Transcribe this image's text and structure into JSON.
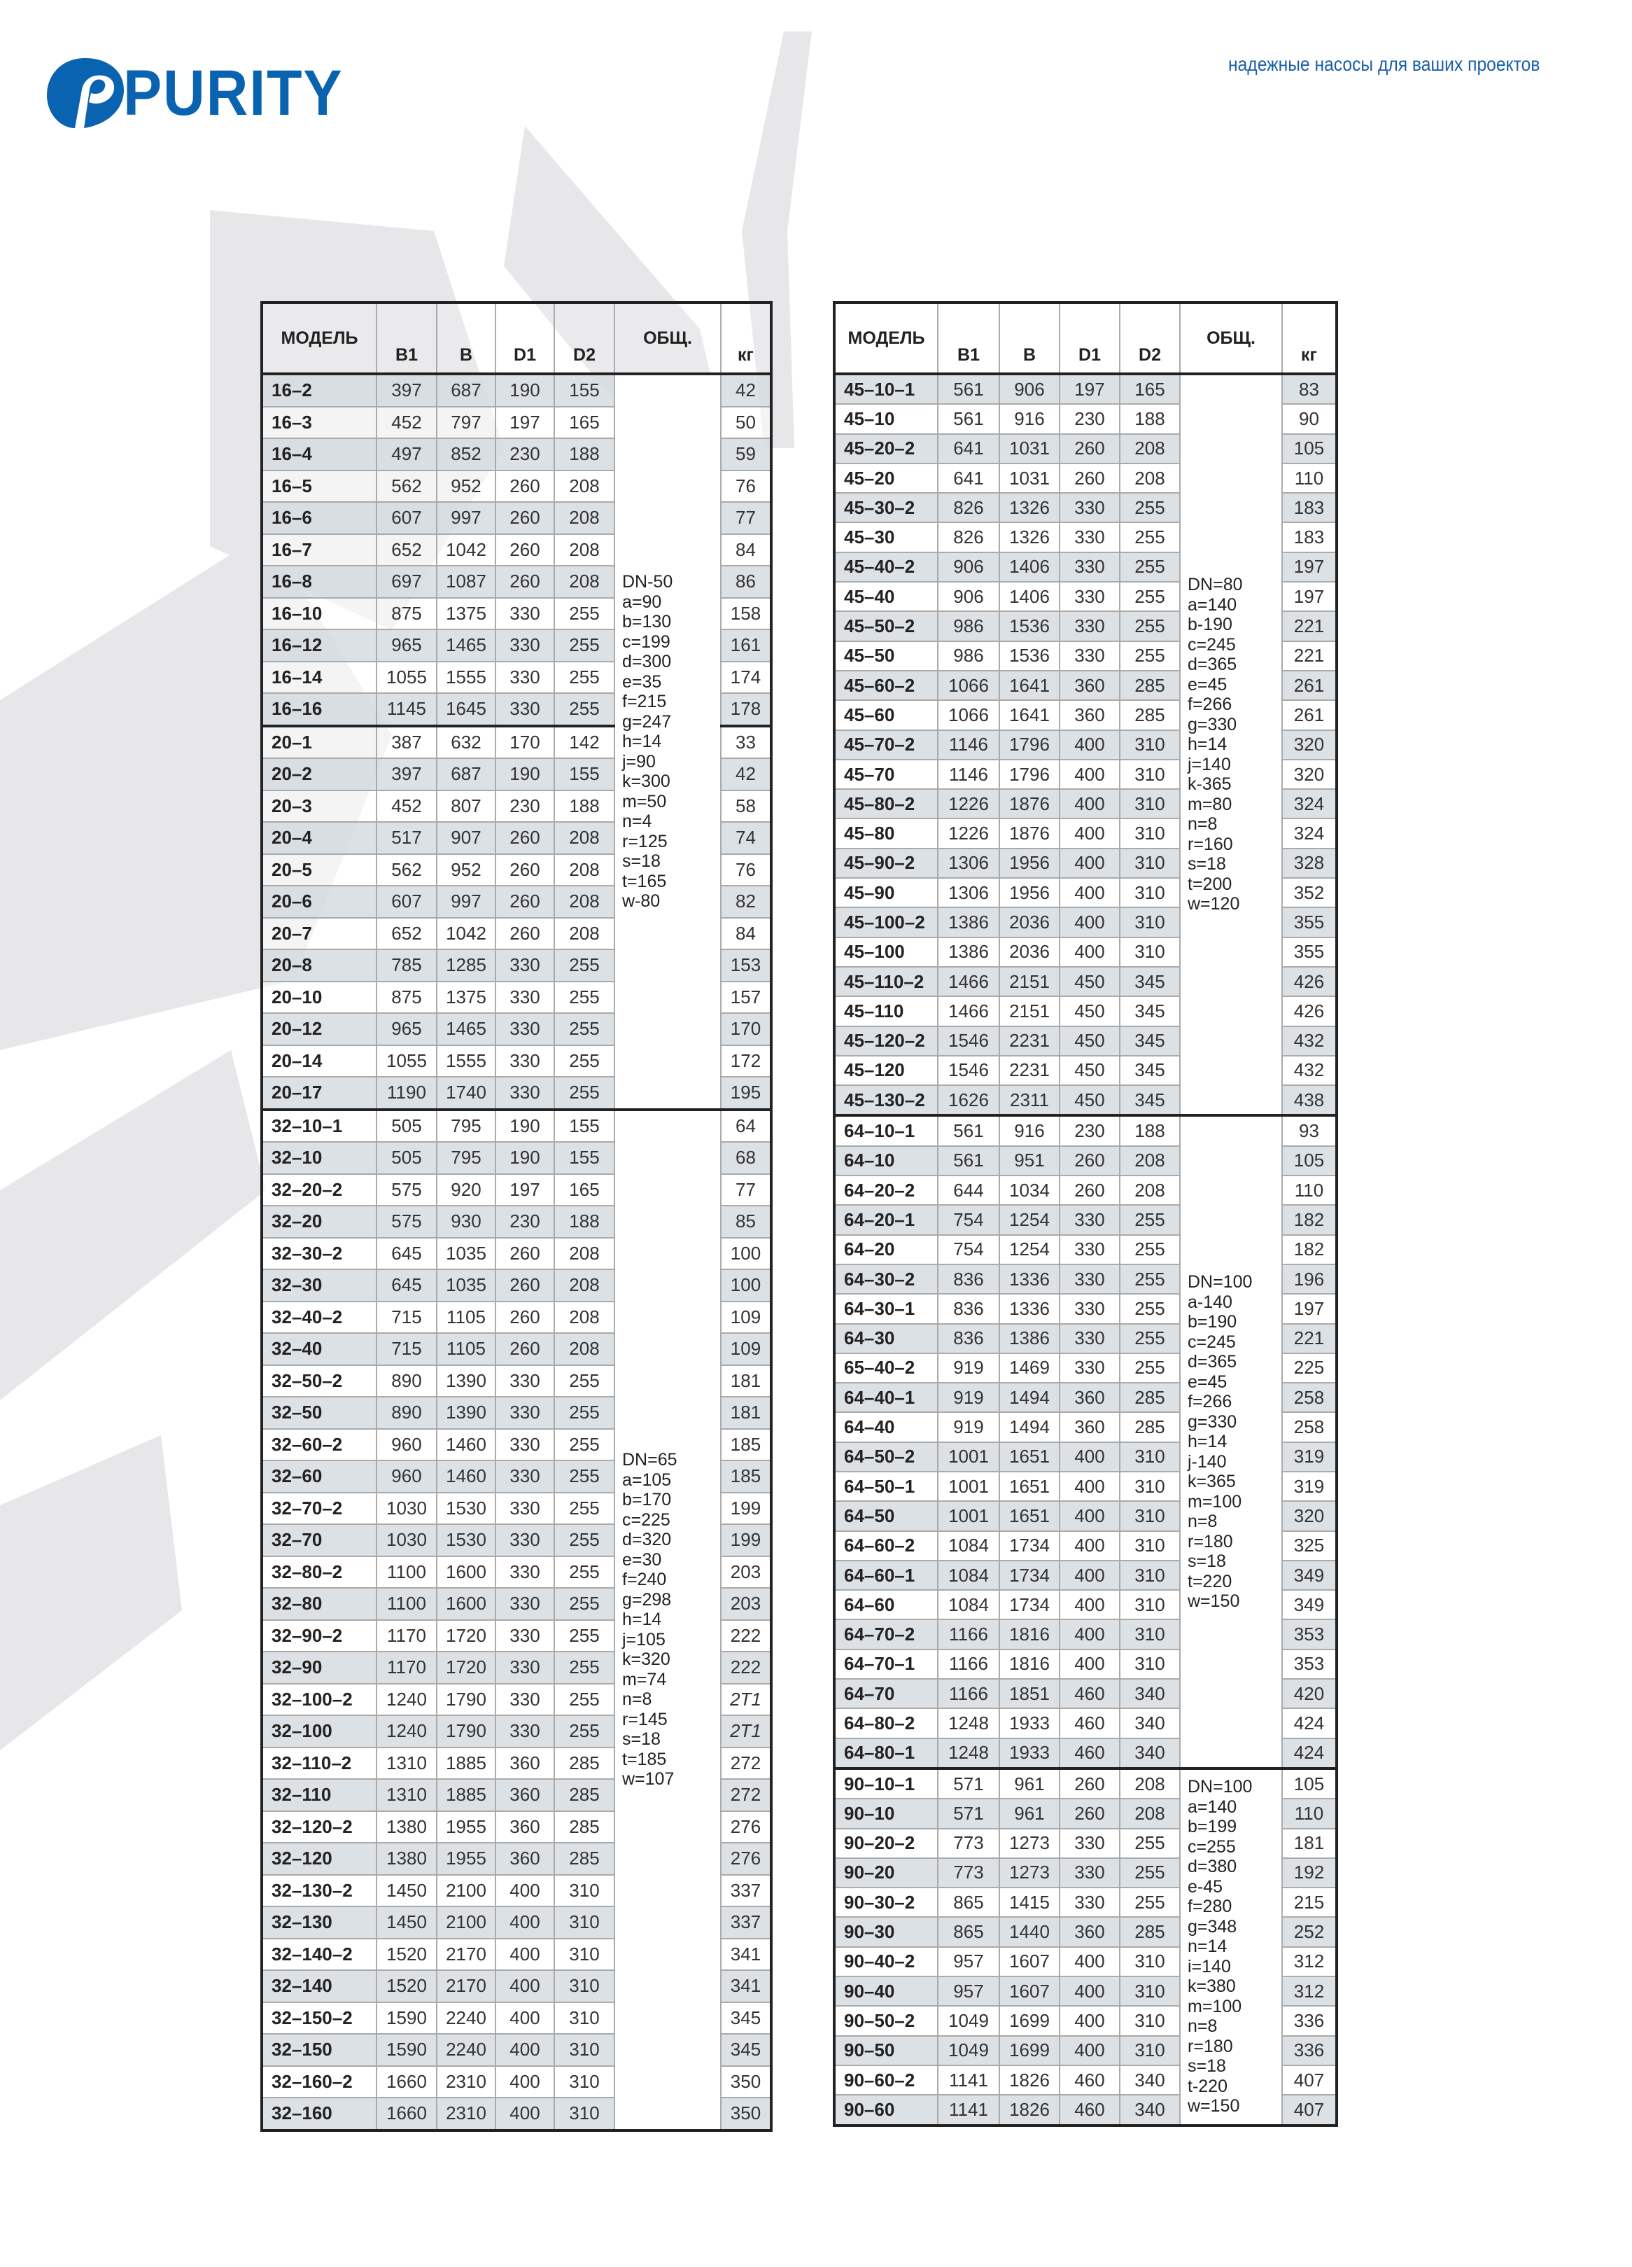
{
  "brand": {
    "logo_text": "PURITY",
    "tagline": "надежные насосы для ваших проектов",
    "color": "#0a63b0",
    "watermark": "PURITY"
  },
  "columns": {
    "model": "МОДЕЛЬ",
    "b1": "B1",
    "b": "B",
    "d1": "D1",
    "d2": "D2",
    "general": "ОБЩ.",
    "kg": "кг"
  },
  "left_table": {
    "groups": [
      {
        "notes": [
          "DN-50",
          "a=90",
          "b=130",
          "c=199",
          "d=300",
          "e=35",
          "f=215",
          "g=247",
          "h=14",
          "j=90",
          "k=300",
          "m=50",
          "n=4",
          "r=125",
          "s=18",
          "t=165",
          "w-80"
        ],
        "rows": [
          [
            "16–2",
            "397",
            "687",
            "190",
            "155",
            "42"
          ],
          [
            "16–3",
            "452",
            "797",
            "197",
            "165",
            "50"
          ],
          [
            "16–4",
            "497",
            "852",
            "230",
            "188",
            "59"
          ],
          [
            "16–5",
            "562",
            "952",
            "260",
            "208",
            "76"
          ],
          [
            "16–6",
            "607",
            "997",
            "260",
            "208",
            "77"
          ],
          [
            "16–7",
            "652",
            "1042",
            "260",
            "208",
            "84"
          ],
          [
            "16–8",
            "697",
            "1087",
            "260",
            "208",
            "86"
          ],
          [
            "16–10",
            "875",
            "1375",
            "330",
            "255",
            "158"
          ],
          [
            "16–12",
            "965",
            "1465",
            "330",
            "255",
            "161"
          ],
          [
            "16–14",
            "1055",
            "1555",
            "330",
            "255",
            "174"
          ],
          [
            "16–16",
            "1145",
            "1645",
            "330",
            "255",
            "178"
          ],
          [
            "20–1",
            "387",
            "632",
            "170",
            "142",
            "33"
          ],
          [
            "20–2",
            "397",
            "687",
            "190",
            "155",
            "42"
          ],
          [
            "20–3",
            "452",
            "807",
            "230",
            "188",
            "58"
          ],
          [
            "20–4",
            "517",
            "907",
            "260",
            "208",
            "74"
          ],
          [
            "20–5",
            "562",
            "952",
            "260",
            "208",
            "76"
          ],
          [
            "20–6",
            "607",
            "997",
            "260",
            "208",
            "82"
          ],
          [
            "20–7",
            "652",
            "1042",
            "260",
            "208",
            "84"
          ],
          [
            "20–8",
            "785",
            "1285",
            "330",
            "255",
            "153"
          ],
          [
            "20–10",
            "875",
            "1375",
            "330",
            "255",
            "157"
          ],
          [
            "20–12",
            "965",
            "1465",
            "330",
            "255",
            "170"
          ],
          [
            "20–14",
            "1055",
            "1555",
            "330",
            "255",
            "172"
          ],
          [
            "20–17",
            "1190",
            "1740",
            "330",
            "255",
            "195"
          ]
        ],
        "subgroup_breaks": [
          11
        ]
      },
      {
        "notes": [
          "DN=65",
          "a=105",
          "b=170",
          "c=225",
          "d=320",
          "e=30",
          "f=240",
          "g=298",
          "h=14",
          "j=105",
          "k=320",
          "m=74",
          "n=8",
          "r=145",
          "s=18",
          "t=185",
          "w=107"
        ],
        "rows": [
          [
            "32–10–1",
            "505",
            "795",
            "190",
            "155",
            "64"
          ],
          [
            "32–10",
            "505",
            "795",
            "190",
            "155",
            "68"
          ],
          [
            "32–20–2",
            "575",
            "920",
            "197",
            "165",
            "77"
          ],
          [
            "32–20",
            "575",
            "930",
            "230",
            "188",
            "85"
          ],
          [
            "32–30–2",
            "645",
            "1035",
            "260",
            "208",
            "100"
          ],
          [
            "32–30",
            "645",
            "1035",
            "260",
            "208",
            "100"
          ],
          [
            "32–40–2",
            "715",
            "1105",
            "260",
            "208",
            "109"
          ],
          [
            "32–40",
            "715",
            "1105",
            "260",
            "208",
            "109"
          ],
          [
            "32–50–2",
            "890",
            "1390",
            "330",
            "255",
            "181"
          ],
          [
            "32–50",
            "890",
            "1390",
            "330",
            "255",
            "181"
          ],
          [
            "32–60–2",
            "960",
            "1460",
            "330",
            "255",
            "185"
          ],
          [
            "32–60",
            "960",
            "1460",
            "330",
            "255",
            "185"
          ],
          [
            "32–70–2",
            "1030",
            "1530",
            "330",
            "255",
            "199"
          ],
          [
            "32–70",
            "1030",
            "1530",
            "330",
            "255",
            "199"
          ],
          [
            "32–80–2",
            "1100",
            "1600",
            "330",
            "255",
            "203"
          ],
          [
            "32–80",
            "1100",
            "1600",
            "330",
            "255",
            "203"
          ],
          [
            "32–90–2",
            "1170",
            "1720",
            "330",
            "255",
            "222"
          ],
          [
            "32–90",
            "1170",
            "1720",
            "330",
            "255",
            "222"
          ],
          [
            "32–100–2",
            "1240",
            "1790",
            "330",
            "255",
            "2T1"
          ],
          [
            "32–100",
            "1240",
            "1790",
            "330",
            "255",
            "2T1"
          ],
          [
            "32–110–2",
            "1310",
            "1885",
            "360",
            "285",
            "272"
          ],
          [
            "32–110",
            "1310",
            "1885",
            "360",
            "285",
            "272"
          ],
          [
            "32–120–2",
            "1380",
            "1955",
            "360",
            "285",
            "276"
          ],
          [
            "32–120",
            "1380",
            "1955",
            "360",
            "285",
            "276"
          ],
          [
            "32–130–2",
            "1450",
            "2100",
            "400",
            "310",
            "337"
          ],
          [
            "32–130",
            "1450",
            "2100",
            "400",
            "310",
            "337"
          ],
          [
            "32–140–2",
            "1520",
            "2170",
            "400",
            "310",
            "341"
          ],
          [
            "32–140",
            "1520",
            "2170",
            "400",
            "310",
            "341"
          ],
          [
            "32–150–2",
            "1590",
            "2240",
            "400",
            "310",
            "345"
          ],
          [
            "32–150",
            "1590",
            "2240",
            "400",
            "310",
            "345"
          ],
          [
            "32–160–2",
            "1660",
            "2310",
            "400",
            "310",
            "350"
          ],
          [
            "32–160",
            "1660",
            "2310",
            "400",
            "310",
            "350"
          ]
        ],
        "subgroup_breaks": []
      }
    ]
  },
  "right_table": {
    "groups": [
      {
        "notes": [
          "DN=80",
          "a=140",
          "b-190",
          "c=245",
          "d=365",
          "e=45",
          "f=266",
          "g=330",
          "h=14",
          "j=140",
          "k-365",
          "m=80",
          "n=8",
          "r=160",
          "s=18",
          "t=200",
          "w=120"
        ],
        "rows": [
          [
            "45–10–1",
            "561",
            "906",
            "197",
            "165",
            "83"
          ],
          [
            "45–10",
            "561",
            "916",
            "230",
            "188",
            "90"
          ],
          [
            "45–20–2",
            "641",
            "1031",
            "260",
            "208",
            "105"
          ],
          [
            "45–20",
            "641",
            "1031",
            "260",
            "208",
            "110"
          ],
          [
            "45–30–2",
            "826",
            "1326",
            "330",
            "255",
            "183"
          ],
          [
            "45–30",
            "826",
            "1326",
            "330",
            "255",
            "183"
          ],
          [
            "45–40–2",
            "906",
            "1406",
            "330",
            "255",
            "197"
          ],
          [
            "45–40",
            "906",
            "1406",
            "330",
            "255",
            "197"
          ],
          [
            "45–50–2",
            "986",
            "1536",
            "330",
            "255",
            "221"
          ],
          [
            "45–50",
            "986",
            "1536",
            "330",
            "255",
            "221"
          ],
          [
            "45–60–2",
            "1066",
            "1641",
            "360",
            "285",
            "261"
          ],
          [
            "45–60",
            "1066",
            "1641",
            "360",
            "285",
            "261"
          ],
          [
            "45–70–2",
            "1146",
            "1796",
            "400",
            "310",
            "320"
          ],
          [
            "45–70",
            "1146",
            "1796",
            "400",
            "310",
            "320"
          ],
          [
            "45–80–2",
            "1226",
            "1876",
            "400",
            "310",
            "324"
          ],
          [
            "45–80",
            "1226",
            "1876",
            "400",
            "310",
            "324"
          ],
          [
            "45–90–2",
            "1306",
            "1956",
            "400",
            "310",
            "328"
          ],
          [
            "45–90",
            "1306",
            "1956",
            "400",
            "310",
            "352"
          ],
          [
            "45–100–2",
            "1386",
            "2036",
            "400",
            "310",
            "355"
          ],
          [
            "45–100",
            "1386",
            "2036",
            "400",
            "310",
            "355"
          ],
          [
            "45–110–2",
            "1466",
            "2151",
            "450",
            "345",
            "426"
          ],
          [
            "45–110",
            "1466",
            "2151",
            "450",
            "345",
            "426"
          ],
          [
            "45–120–2",
            "1546",
            "2231",
            "450",
            "345",
            "432"
          ],
          [
            "45–120",
            "1546",
            "2231",
            "450",
            "345",
            "432"
          ],
          [
            "45–130–2",
            "1626",
            "2311",
            "450",
            "345",
            "438"
          ]
        ],
        "subgroup_breaks": []
      },
      {
        "notes": [
          "DN=100",
          "a-140",
          "b=190",
          "c=245",
          "d=365",
          "e=45",
          "f=266",
          "g=330",
          "h=14",
          "j-140",
          "k=365",
          "m=100",
          "n=8",
          "r=180",
          "s=18",
          "t=220",
          "w=150"
        ],
        "rows": [
          [
            "64–10–1",
            "561",
            "916",
            "230",
            "188",
            "93"
          ],
          [
            "64–10",
            "561",
            "951",
            "260",
            "208",
            "105"
          ],
          [
            "64–20–2",
            "644",
            "1034",
            "260",
            "208",
            "110"
          ],
          [
            "64–20–1",
            "754",
            "1254",
            "330",
            "255",
            "182"
          ],
          [
            "64–20",
            "754",
            "1254",
            "330",
            "255",
            "182"
          ],
          [
            "64–30–2",
            "836",
            "1336",
            "330",
            "255",
            "196"
          ],
          [
            "64–30–1",
            "836",
            "1336",
            "330",
            "255",
            "197"
          ],
          [
            "64–30",
            "836",
            "1386",
            "330",
            "255",
            "221"
          ],
          [
            "65–40–2",
            "919",
            "1469",
            "330",
            "255",
            "225"
          ],
          [
            "64–40–1",
            "919",
            "1494",
            "360",
            "285",
            "258"
          ],
          [
            "64–40",
            "919",
            "1494",
            "360",
            "285",
            "258"
          ],
          [
            "64–50–2",
            "1001",
            "1651",
            "400",
            "310",
            "319"
          ],
          [
            "64–50–1",
            "1001",
            "1651",
            "400",
            "310",
            "319"
          ],
          [
            "64–50",
            "1001",
            "1651",
            "400",
            "310",
            "320"
          ],
          [
            "64–60–2",
            "1084",
            "1734",
            "400",
            "310",
            "325"
          ],
          [
            "64–60–1",
            "1084",
            "1734",
            "400",
            "310",
            "349"
          ],
          [
            "64–60",
            "1084",
            "1734",
            "400",
            "310",
            "349"
          ],
          [
            "64–70–2",
            "1166",
            "1816",
            "400",
            "310",
            "353"
          ],
          [
            "64–70–1",
            "1166",
            "1816",
            "400",
            "310",
            "353"
          ],
          [
            "64–70",
            "1166",
            "1851",
            "460",
            "340",
            "420"
          ],
          [
            "64–80–2",
            "1248",
            "1933",
            "460",
            "340",
            "424"
          ],
          [
            "64–80–1",
            "1248",
            "1933",
            "460",
            "340",
            "424"
          ]
        ],
        "subgroup_breaks": []
      },
      {
        "notes": [
          "DN=100",
          "a=140",
          "b=199",
          "c=255",
          "d=380",
          "e-45",
          "f=280",
          "g=348",
          "n=14",
          "i=140",
          "k=380",
          "m=100",
          "n=8",
          "r=180",
          "s=18",
          "t-220",
          "w=150"
        ],
        "rows": [
          [
            "90–10–1",
            "571",
            "961",
            "260",
            "208",
            "105"
          ],
          [
            "90–10",
            "571",
            "961",
            "260",
            "208",
            "110"
          ],
          [
            "90–20–2",
            "773",
            "1273",
            "330",
            "255",
            "181"
          ],
          [
            "90–20",
            "773",
            "1273",
            "330",
            "255",
            "192"
          ],
          [
            "90–30–2",
            "865",
            "1415",
            "330",
            "255",
            "215"
          ],
          [
            "90–30",
            "865",
            "1440",
            "360",
            "285",
            "252"
          ],
          [
            "90–40–2",
            "957",
            "1607",
            "400",
            "310",
            "312"
          ],
          [
            "90–40",
            "957",
            "1607",
            "400",
            "310",
            "312"
          ],
          [
            "90–50–2",
            "1049",
            "1699",
            "400",
            "310",
            "336"
          ],
          [
            "90–50",
            "1049",
            "1699",
            "400",
            "310",
            "336"
          ],
          [
            "90–60–2",
            "1141",
            "1826",
            "460",
            "340",
            "407"
          ],
          [
            "90–60",
            "1141",
            "1826",
            "460",
            "340",
            "407"
          ]
        ],
        "subgroup_breaks": []
      }
    ]
  }
}
